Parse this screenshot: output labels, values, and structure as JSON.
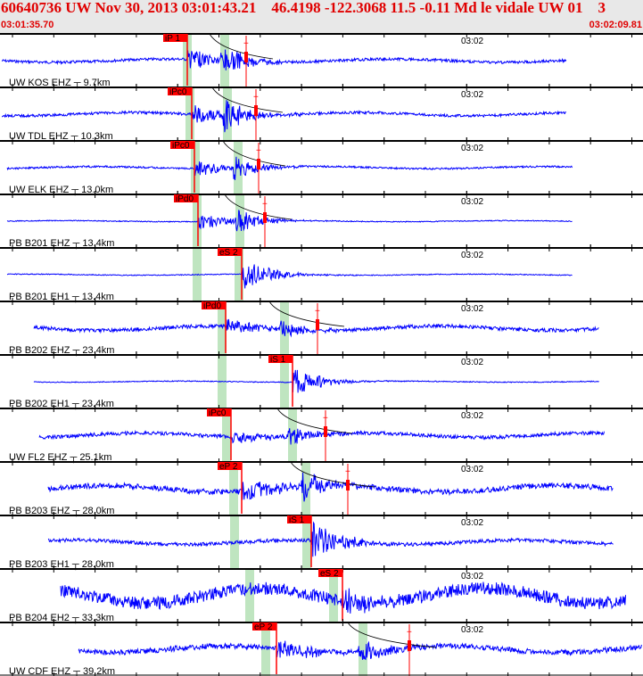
{
  "header": {
    "title": "60640736 UW Nov 30, 2013 03:01:43.21    46.4198 -122.3068 11.5 -0.11 Md le vidale UW 01    3",
    "start_time": "03:01:35.70",
    "end_time": "03:02:09.81"
  },
  "minute_label": "03:02",
  "colors": {
    "trace": "#0000ff",
    "pick": "#ff0000",
    "window": "#bfe5c0",
    "header_text": "#e00000"
  },
  "traces": [
    {
      "station": "UW KOS EHZ",
      "distance": "9.7km",
      "pick": "iP 1"
    },
    {
      "station": "UW TDL EHZ",
      "distance": "10.3km",
      "pick": "iPc0"
    },
    {
      "station": "UW ELK EHZ",
      "distance": "13.0km",
      "pick": "iPc0"
    },
    {
      "station": "PB B201 EHZ",
      "distance": "13.4km",
      "pick": "iPd0"
    },
    {
      "station": "PB B201 EH1",
      "distance": "13.4km",
      "pick": "eS 2"
    },
    {
      "station": "PB B202 EHZ",
      "distance": "23.4km",
      "pick": "iPd0"
    },
    {
      "station": "PB B202 EH1",
      "distance": "23.4km",
      "pick": "iS 1"
    },
    {
      "station": "UW FL2 EHZ",
      "distance": "25.1km",
      "pick": "iPc0"
    },
    {
      "station": "PB B203 EHZ",
      "distance": "28.0km",
      "pick": "eP 2"
    },
    {
      "station": "PB B203 EH1",
      "distance": "28.0km",
      "pick": "iS 1"
    },
    {
      "station": "PB B204 EH2",
      "distance": "33.3km",
      "pick": "eS 2"
    },
    {
      "station": "UW CDF EHZ",
      "distance": "39.2km",
      "pick": "eP 2"
    }
  ]
}
